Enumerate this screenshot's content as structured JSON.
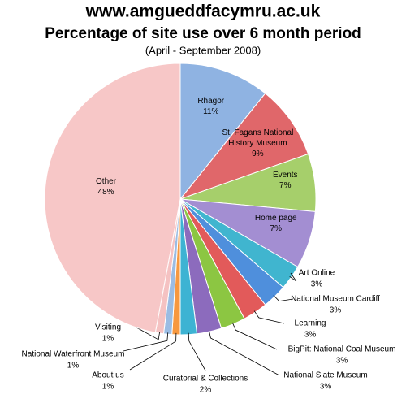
{
  "chart_data": {
    "type": "pie",
    "title": "www.amgueddfacymru.ac.uk",
    "subtitle": "Percentage of site use over 6 month period",
    "date_range": "(April - September 2008)",
    "categories": [
      "Rhagor",
      "St. Fagans National History Museum",
      "Events",
      "Home page",
      "Art Online",
      "National Museum Cardiff",
      "Learning",
      "BigPit: National Coal Museum",
      "National Slate Museum",
      "Curatorial & Collections",
      "About us",
      "National Waterfront Museum",
      "Visiting",
      "Other"
    ],
    "values": [
      11,
      9,
      7,
      7,
      3,
      3,
      3,
      3,
      3,
      2,
      1,
      1,
      1,
      48
    ],
    "value_labels": [
      "11%",
      "9%",
      "7%",
      "7%",
      "3%",
      "3%",
      "3%",
      "3%",
      "3%",
      "2%",
      "1%",
      "1%",
      "1%",
      "48%"
    ],
    "colors": [
      "#8fb3e2",
      "#e0676a",
      "#a6cf6b",
      "#a38ed2",
      "#40b5cf",
      "#4f8fdc",
      "#e25a5a",
      "#8cc642",
      "#8c6bbd",
      "#3db3d3",
      "#f7983f",
      "#9bbce3",
      "#f5c2c2",
      "#f7c7c7"
    ]
  }
}
